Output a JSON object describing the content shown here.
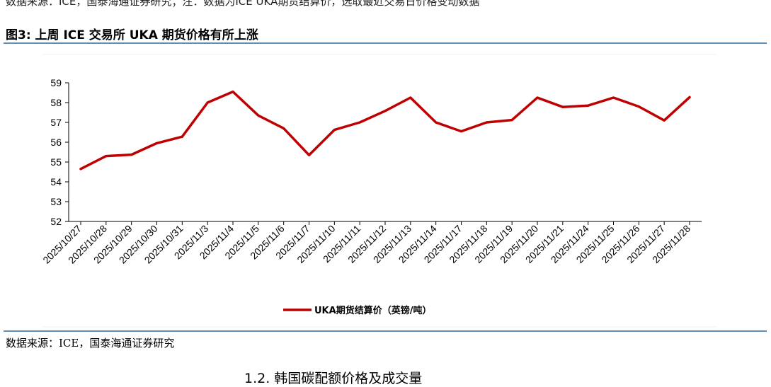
{
  "header_fragment": "数据来源：ICE，国泰海通证券研究；注：数据为ICE UKA期货结算价，选取最近交易日价格变动数据",
  "figure_title": "图3:  上周 ICE 交易所 UKA 期货价格有所上涨",
  "source_note": "数据来源：ICE，国泰海通证券研究",
  "next_section_heading": "1.2. 韩国碳配额价格及成交量",
  "colors": {
    "series": "#c00000",
    "rule": "#5b8fb8",
    "axis": "#000000"
  },
  "chart_data": {
    "type": "line",
    "title": "",
    "xlabel": "",
    "ylabel": "",
    "ylim": [
      52,
      59
    ],
    "yticks": [
      52,
      53,
      54,
      55,
      56,
      57,
      58,
      59
    ],
    "grid": false,
    "legend_position": "bottom",
    "x": [
      "2025/10/27",
      "2025/10/28",
      "2025/10/29",
      "2025/10/30",
      "2025/10/31",
      "2025/11/3",
      "2025/11/4",
      "2025/11/5",
      "2025/11/6",
      "2025/11/7",
      "2025/11/10",
      "2025/11/11",
      "2025/11/12",
      "2025/11/13",
      "2025/11/14",
      "2025/11/17",
      "2025/11/18",
      "2025/11/19",
      "2025/11/20",
      "2025/11/21",
      "2025/11/24",
      "2025/11/25",
      "2025/11/26",
      "2025/11/27",
      "2025/11/28"
    ],
    "series": [
      {
        "name": "UKA期货结算价（英镑/吨）",
        "values": [
          54.65,
          55.3,
          55.37,
          55.95,
          56.28,
          58.0,
          58.55,
          57.35,
          56.7,
          55.35,
          56.62,
          57.0,
          57.58,
          58.25,
          57.0,
          56.55,
          57.0,
          57.12,
          58.25,
          57.78,
          57.85,
          58.25,
          57.8,
          57.1,
          58.27
        ]
      }
    ]
  }
}
